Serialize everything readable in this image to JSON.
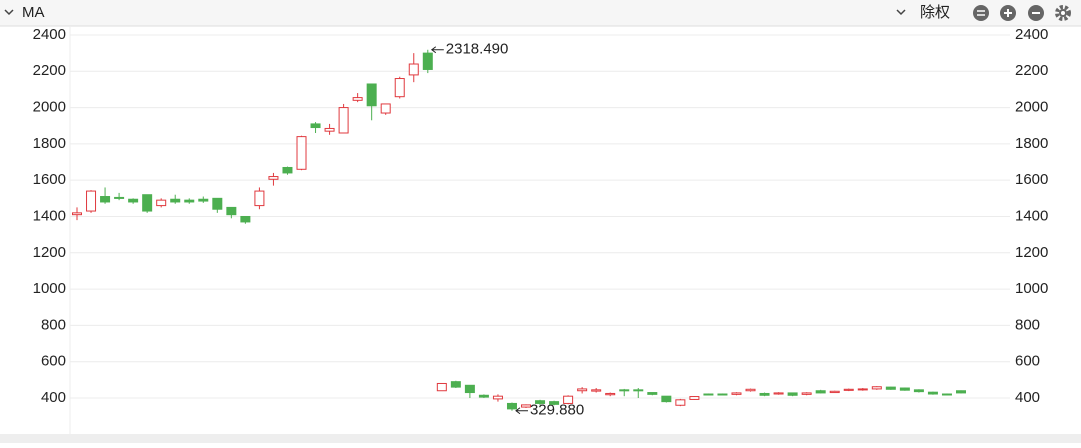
{
  "toolbar": {
    "indicator": "MA",
    "adjust": "除权"
  },
  "chart_data": {
    "type": "candlestick",
    "open": [
      1410,
      1430,
      1510,
      1505,
      1495,
      1520,
      1460,
      1495,
      1490,
      1495,
      1500,
      1450,
      1400,
      1460,
      1605,
      1670,
      1660,
      1910,
      1870,
      1860,
      2040,
      2130,
      1970,
      2060,
      2180,
      2300,
      440,
      490,
      470,
      415,
      395,
      370,
      350,
      385,
      380,
      370,
      440,
      438,
      418,
      445,
      445,
      430,
      410,
      360,
      392,
      422,
      422,
      420,
      440,
      425,
      422,
      428,
      420,
      440,
      430,
      442,
      445,
      450,
      460,
      455,
      445,
      432,
      422,
      440
    ],
    "high": [
      1450,
      1545,
      1560,
      1530,
      1500,
      1520,
      1500,
      1520,
      1500,
      1510,
      1500,
      1450,
      1400,
      1560,
      1640,
      1675,
      1845,
      1920,
      1910,
      2020,
      2080,
      2130,
      2020,
      2170,
      2300,
      2318.49,
      480,
      495,
      470,
      420,
      420,
      375,
      365,
      390,
      385,
      415,
      460,
      455,
      430,
      450,
      455,
      430,
      410,
      395,
      410,
      425,
      425,
      432,
      452,
      430,
      432,
      430,
      432,
      445,
      440,
      452,
      455,
      465,
      462,
      458,
      448,
      435,
      425,
      442
    ],
    "low": [
      1380,
      1420,
      1470,
      1490,
      1470,
      1420,
      1450,
      1470,
      1470,
      1475,
      1420,
      1390,
      1360,
      1440,
      1570,
      1630,
      1655,
      1860,
      1850,
      1860,
      2030,
      1930,
      1960,
      2050,
      2140,
      2190,
      440,
      455,
      400,
      400,
      380,
      329.88,
      345,
      360,
      360,
      365,
      425,
      430,
      410,
      410,
      400,
      415,
      375,
      355,
      390,
      415,
      415,
      415,
      435,
      410,
      418,
      410,
      415,
      425,
      428,
      438,
      440,
      445,
      445,
      440,
      430,
      418,
      415,
      425
    ],
    "close": [
      1420,
      1540,
      1480,
      1500,
      1480,
      1430,
      1490,
      1480,
      1480,
      1485,
      1440,
      1410,
      1370,
      1540,
      1620,
      1640,
      1840,
      1890,
      1885,
      2000,
      2055,
      2010,
      2020,
      2160,
      2240,
      2210,
      480,
      460,
      430,
      405,
      410,
      340,
      362,
      370,
      365,
      410,
      450,
      445,
      425,
      440,
      440,
      420,
      380,
      390,
      408,
      418,
      418,
      428,
      448,
      415,
      428,
      415,
      428,
      428,
      437,
      448,
      450,
      462,
      448,
      443,
      435,
      422,
      418,
      428
    ],
    "up_color": "#e0393e",
    "down_color": "#4caf50",
    "extremes": [
      {
        "value": 2318.49,
        "label": "2318.490"
      },
      {
        "value": 329.88,
        "label": "329.880"
      }
    ],
    "ylim": [
      200,
      2450
    ],
    "yticks": [
      400,
      600,
      800,
      1000,
      1200,
      1400,
      1600,
      1800,
      2000,
      2200,
      2400
    ],
    "grid": true
  }
}
